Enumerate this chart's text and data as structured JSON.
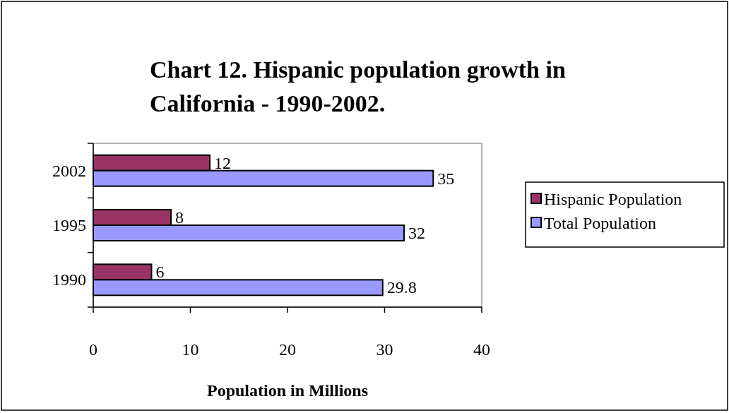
{
  "chart_data": {
    "type": "bar",
    "orientation": "horizontal",
    "title": "Chart 12.  Hispanic population growth in California - 1990-2002.",
    "xlabel": "Population in Millions",
    "categories": [
      "2002",
      "1995",
      "1990"
    ],
    "series": [
      {
        "name": "Hispanic Population",
        "color": "#993366",
        "values": [
          12,
          8,
          6
        ]
      },
      {
        "name": "Total Population",
        "color": "#9999ff",
        "values": [
          35,
          32,
          29.8
        ]
      }
    ],
    "xlim": [
      0,
      40
    ],
    "xticks": [
      0,
      10,
      20,
      30,
      40
    ],
    "data_labels": true,
    "legend": "right",
    "grid": false
  }
}
